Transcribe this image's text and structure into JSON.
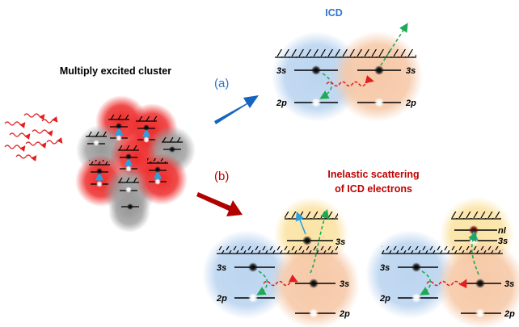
{
  "title_left": "Multiply excited cluster",
  "title_icd": "ICD",
  "branch_a": "(a)",
  "branch_b": "(b)",
  "title_inelastic_line1": "Inelastic scattering",
  "title_inelastic_line2": "of ICD electrons",
  "level_3s": "3s",
  "level_2p": "2p",
  "level_nl": "nl",
  "colors": {
    "icd_title": "#2e75d6",
    "inelastic_title": "#c00000",
    "arrow_a": "#1565c0",
    "arrow_b": "#b00000",
    "blob_blue": "#bcd5f0",
    "blob_orange": "#f6c9a8",
    "blob_yellow": "#fbe4a6",
    "blob_red": "#ee2b2b",
    "blob_gray": "#9a9a9a",
    "green_arrow": "#1eaa55",
    "red_arrow": "#e02020",
    "cyan_arrow": "#2aa0e0"
  }
}
